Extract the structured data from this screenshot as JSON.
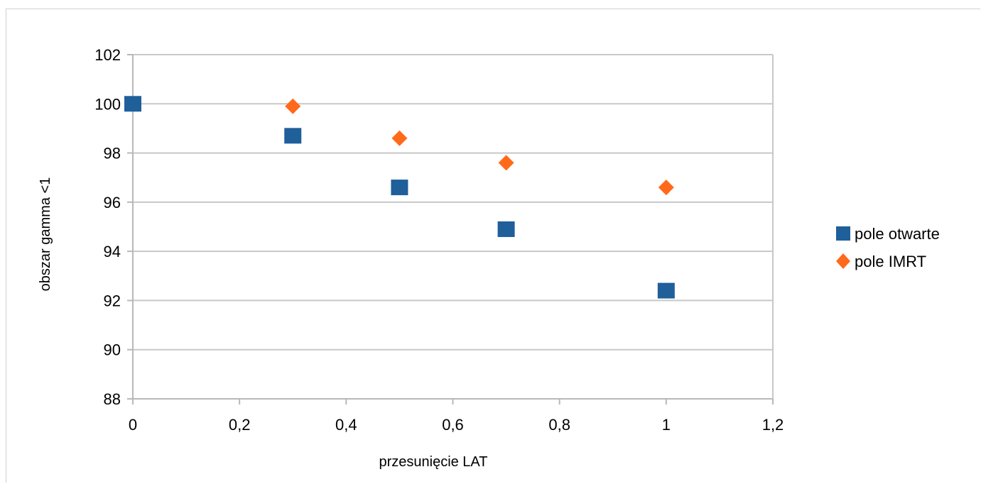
{
  "chart_data": {
    "type": "scatter",
    "xlabel": "przesunięcie LAT",
    "ylabel": "obszar gamma <1",
    "xlim": [
      0,
      1.2
    ],
    "ylim": [
      88,
      102
    ],
    "x_ticks": [
      "0",
      "0,2",
      "0,4",
      "0,6",
      "0,8",
      "1",
      "1,2"
    ],
    "y_ticks": [
      "88",
      "90",
      "92",
      "94",
      "96",
      "98",
      "100",
      "102"
    ],
    "grid": "horizontal",
    "legend_position": "right",
    "series": [
      {
        "name": "pole otwarte",
        "marker": "square",
        "color": "#1f5f9a",
        "points": [
          [
            0,
            100
          ],
          [
            0.3,
            98.7
          ],
          [
            0.5,
            96.6
          ],
          [
            0.7,
            94.9
          ],
          [
            1.0,
            92.4
          ]
        ]
      },
      {
        "name": "pole IMRT",
        "marker": "diamond",
        "color": "#ff6a1a",
        "points": [
          [
            0.3,
            99.9
          ],
          [
            0.5,
            98.6
          ],
          [
            0.7,
            97.6
          ],
          [
            1.0,
            96.6
          ]
        ]
      }
    ]
  }
}
